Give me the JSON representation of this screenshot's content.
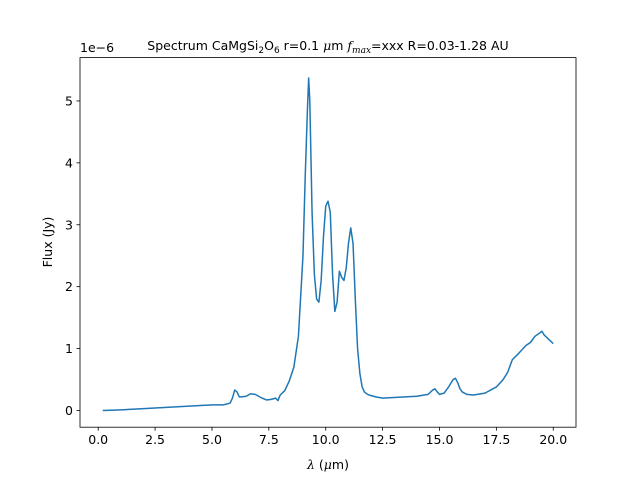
{
  "chart_data": {
    "type": "line",
    "title": {
      "prefix": "Spectrum CaMgSi",
      "sub1": "2",
      "mid": "O",
      "sub2": "6",
      "suffix1": " r=0.1 ",
      "mu": "μ",
      "suffix2": "m ",
      "f": "f",
      "f_sub": "max",
      "suffix3": "=xxx R=0.03-1.28 AU"
    },
    "xlabel": {
      "lambda": "λ",
      "rest": " (",
      "mu": "μ",
      "unit": "m)"
    },
    "ylabel": "Flux (Jy)",
    "y_offset_text": "1e−6",
    "xlim": [
      -0.8,
      21.0
    ],
    "ylim": [
      -0.27,
      5.7
    ],
    "x_ticks": [
      0.0,
      2.5,
      5.0,
      7.5,
      10.0,
      12.5,
      15.0,
      17.5,
      20.0
    ],
    "x_tick_labels": [
      "0.0",
      "2.5",
      "5.0",
      "7.5",
      "10.0",
      "12.5",
      "15.0",
      "17.5",
      "20.0"
    ],
    "y_ticks": [
      0,
      1,
      2,
      3,
      4,
      5
    ],
    "y_tick_labels": [
      "0",
      "1",
      "2",
      "3",
      "4",
      "5"
    ],
    "grid": false,
    "color": "#1f77b4",
    "series": [
      {
        "x": [
          0.2,
          1,
          2,
          3,
          4,
          5,
          5.5,
          5.8,
          5.9,
          6.0,
          6.1,
          6.2,
          6.3,
          6.5,
          6.7,
          6.9,
          7.0,
          7.2,
          7.4,
          7.6,
          7.8,
          7.9,
          8.0,
          8.2,
          8.4,
          8.6,
          8.8,
          9.0,
          9.1,
          9.2,
          9.25,
          9.3,
          9.4,
          9.5,
          9.6,
          9.7,
          9.8,
          9.9,
          10.0,
          10.1,
          10.2,
          10.3,
          10.4,
          10.5,
          10.6,
          10.7,
          10.8,
          10.9,
          11.0,
          11.1,
          11.2,
          11.3,
          11.4,
          11.5,
          11.6,
          11.7,
          11.8,
          11.9,
          12.0,
          12.2,
          12.5,
          13.0,
          13.5,
          14.0,
          14.5,
          14.7,
          14.8,
          14.9,
          15.0,
          15.2,
          15.4,
          15.6,
          15.7,
          15.8,
          15.9,
          16.0,
          16.2,
          16.5,
          17.0,
          17.5,
          17.8,
          18.0,
          18.2,
          18.5,
          18.8,
          19.0,
          19.2,
          19.4,
          19.5,
          19.6,
          19.8,
          20.0
        ],
        "y": [
          0.0,
          0.01,
          0.03,
          0.05,
          0.07,
          0.09,
          0.09,
          0.12,
          0.2,
          0.33,
          0.3,
          0.22,
          0.22,
          0.23,
          0.27,
          0.26,
          0.24,
          0.2,
          0.17,
          0.18,
          0.2,
          0.16,
          0.25,
          0.32,
          0.48,
          0.7,
          1.2,
          2.5,
          3.8,
          4.9,
          5.37,
          5.0,
          3.2,
          2.2,
          1.8,
          1.75,
          2.1,
          2.8,
          3.3,
          3.38,
          3.2,
          2.2,
          1.6,
          1.75,
          2.25,
          2.15,
          2.1,
          2.3,
          2.7,
          2.95,
          2.7,
          1.8,
          1.0,
          0.6,
          0.38,
          0.3,
          0.27,
          0.25,
          0.24,
          0.22,
          0.2,
          0.21,
          0.22,
          0.23,
          0.26,
          0.33,
          0.35,
          0.3,
          0.26,
          0.28,
          0.38,
          0.5,
          0.52,
          0.45,
          0.35,
          0.3,
          0.26,
          0.25,
          0.28,
          0.38,
          0.5,
          0.62,
          0.82,
          0.93,
          1.05,
          1.1,
          1.2,
          1.25,
          1.28,
          1.22,
          1.15,
          1.08
        ]
      }
    ]
  }
}
